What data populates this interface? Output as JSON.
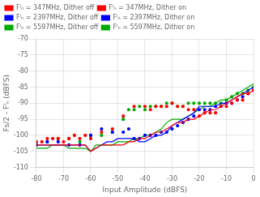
{
  "chart_data": {
    "type": "line",
    "xlabel": "Input Amplitude (dBFS)",
    "ylabel": "Fs/2 - Fᴵₙ (dBFS)",
    "xlim": [
      -80,
      0
    ],
    "ylim": [
      -110,
      -70
    ],
    "xticks": [
      -80,
      -70,
      -60,
      -50,
      -40,
      -30,
      -20,
      -10,
      0
    ],
    "yticks": [
      -110,
      -105,
      -100,
      -95,
      -90,
      -85,
      -80,
      -75,
      -70
    ],
    "grid": true,
    "legend": "upper left",
    "series": [
      {
        "name": "Fᴵₙ = 347MHz, Dither off",
        "color": "#FF0000",
        "marker": "dot",
        "line_style": "none",
        "x": [
          -80,
          -78,
          -76,
          -74,
          -72,
          -70,
          -68,
          -66,
          -64,
          -62,
          -60,
          -56,
          -52,
          -48,
          -44,
          -40,
          -38,
          -36,
          -34,
          -32,
          -30,
          -28,
          -26,
          -24,
          -22,
          -20,
          -18,
          -16,
          -14,
          -12,
          -10,
          -8,
          -6,
          -4,
          -2,
          0
        ],
        "values": [
          -102,
          -102,
          -101,
          -101,
          -101,
          -102,
          -101,
          -100,
          -101,
          -100,
          -101,
          -99,
          -98,
          -94,
          -91,
          -91,
          -92,
          -91,
          -91,
          -91,
          -90,
          -91,
          -91,
          -92,
          -92,
          -94,
          -93,
          -93,
          -93,
          -91,
          -91,
          -90,
          -89,
          -89,
          -87,
          -86
        ]
      },
      {
        "name": "Fᴵₙ = 347MHz, Dither on",
        "color": "#FF0000",
        "line_style": "solid",
        "x": [
          -80,
          -78,
          -76,
          -74,
          -72,
          -70,
          -68,
          -66,
          -64,
          -62,
          -60,
          -58,
          -56,
          -54,
          -52,
          -50,
          -48,
          -46,
          -44,
          -42,
          -40,
          -38,
          -36,
          -34,
          -32,
          -30,
          -28,
          -26,
          -24,
          -22,
          -20,
          -18,
          -16,
          -14,
          -12,
          -10,
          -8,
          -6,
          -4,
          -2,
          0
        ],
        "values": [
          -103,
          -103,
          -103,
          -103,
          -103,
          -103,
          -103,
          -103,
          -103,
          -103,
          -105,
          -104,
          -103,
          -103,
          -103,
          -103,
          -103,
          -102,
          -102,
          -101,
          -101,
          -100,
          -99,
          -99,
          -98,
          -97,
          -96,
          -96,
          -95,
          -95,
          -94,
          -93,
          -92,
          -92,
          -91,
          -90,
          -89,
          -88,
          -87,
          -87,
          -86
        ]
      },
      {
        "name": "Fᴵₙ = 2397MHz, Dither off",
        "color": "#0000FF",
        "marker": "dot",
        "line_style": "none",
        "x": [
          -80,
          -76,
          -72,
          -68,
          -64,
          -60,
          -56,
          -52,
          -48,
          -46,
          -44,
          -42,
          -40,
          -38,
          -36,
          -34,
          -32,
          -30,
          -28,
          -26,
          -24,
          -22,
          -20,
          -18,
          -16,
          -14,
          -12,
          -10,
          -8,
          -6,
          -4,
          -2,
          0
        ],
        "values": [
          -103,
          -102,
          -102,
          -103,
          -103,
          -100,
          -98,
          -99,
          -99,
          -98,
          -101,
          -101,
          -100,
          -100,
          -100,
          -99,
          -99,
          -98,
          -97,
          -96,
          -95,
          -94,
          -92,
          -92,
          -92,
          -91,
          -91,
          -90,
          -90,
          -89,
          -88,
          -87,
          -86
        ]
      },
      {
        "name": "Fᴵₙ = 2397MHz, Dither on",
        "color": "#0000FF",
        "line_style": "solid",
        "x": [
          -80,
          -78,
          -76,
          -74,
          -72,
          -70,
          -68,
          -66,
          -64,
          -62,
          -60,
          -58,
          -56,
          -54,
          -52,
          -50,
          -48,
          -46,
          -44,
          -42,
          -40,
          -38,
          -36,
          -34,
          -32,
          -30,
          -28,
          -26,
          -24,
          -22,
          -20,
          -18,
          -16,
          -14,
          -12,
          -10,
          -8,
          -6,
          -4,
          -2,
          0
        ],
        "values": [
          -103,
          -103,
          -103,
          -103,
          -103,
          -103,
          -103,
          -103,
          -103,
          -103,
          -105,
          -104,
          -103,
          -102,
          -102,
          -101,
          -101,
          -101,
          -101,
          -102,
          -102,
          -101,
          -100,
          -100,
          -99,
          -97,
          -96,
          -95,
          -94,
          -93,
          -91,
          -91,
          -91,
          -91,
          -90,
          -90,
          -89,
          -88,
          -87,
          -86,
          -85
        ]
      },
      {
        "name": "Fᴵₙ = 5597MHz, Dither off",
        "color": "#00AA00",
        "marker": "dot",
        "line_style": "none",
        "x": [
          -80,
          -76,
          -72,
          -68,
          -64,
          -60,
          -56,
          -52,
          -48,
          -46,
          -44,
          -42,
          -40,
          -38,
          -36,
          -34,
          -32,
          -30,
          -28,
          -26,
          -24,
          -22,
          -20,
          -18,
          -16,
          -14,
          -12,
          -10,
          -8,
          -6,
          -4,
          -2,
          0
        ],
        "values": [
          -103,
          -102,
          -101,
          -101,
          -102,
          -100,
          -100,
          -99,
          -95,
          -92,
          -92,
          -91,
          -92,
          -91,
          -91,
          -91,
          -90,
          -90,
          -91,
          -91,
          -90,
          -90,
          -90,
          -90,
          -90,
          -90,
          -90,
          -89,
          -88,
          -87,
          -87,
          -86,
          -85
        ]
      },
      {
        "name": "Fᴵₙ = 5597MHz, Dither on",
        "color": "#00AA00",
        "line_style": "solid",
        "x": [
          -80,
          -78,
          -76,
          -74,
          -72,
          -70,
          -68,
          -66,
          -64,
          -62,
          -60,
          -58,
          -56,
          -54,
          -52,
          -50,
          -48,
          -46,
          -44,
          -42,
          -40,
          -38,
          -36,
          -34,
          -32,
          -30,
          -28,
          -26,
          -24,
          -22,
          -20,
          -18,
          -16,
          -14,
          -12,
          -10,
          -8,
          -6,
          -4,
          -2,
          0
        ],
        "values": [
          -104,
          -104,
          -104,
          -103,
          -103,
          -103,
          -104,
          -104,
          -104,
          -104,
          -105,
          -103,
          -103,
          -103,
          -103,
          -102,
          -102,
          -102,
          -101,
          -101,
          -100,
          -100,
          -99,
          -98,
          -96,
          -95,
          -95,
          -95,
          -94,
          -93,
          -92,
          -91,
          -91,
          -90,
          -89,
          -89,
          -88,
          -87,
          -86,
          -85,
          -84
        ]
      }
    ]
  }
}
